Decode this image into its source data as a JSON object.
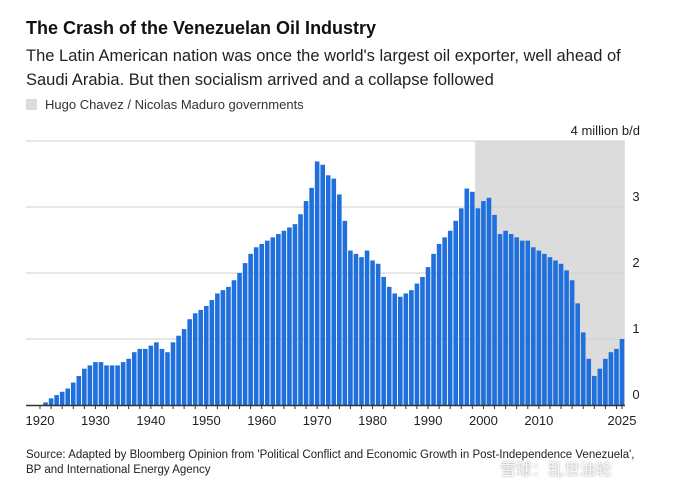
{
  "title": "The Crash of the Venezuelan Oil Industry",
  "subtitle": "The Latin American nation was once the world's largest oil exporter, well ahead of Saudi Arabia. But then socialism arrived and a collapse followed",
  "source": "Source: Adapted by Bloomberg Opinion from 'Political Conflict and Economic Growth in Post-Independence Venezuela', BP and International Energy Agency",
  "watermark": "雪球：乱世油轮",
  "chart_data": {
    "type": "bar",
    "title": "The Crash of the Venezuelan Oil Industry",
    "ylabel": "4 million b/d",
    "ylim": [
      0,
      4
    ],
    "yticks": [
      "0",
      "1",
      "2",
      "3",
      "4 million b/d"
    ],
    "xticks": [
      "1920",
      "1930",
      "1940",
      "1950",
      "1960",
      "1970",
      "1980",
      "1990",
      "2000",
      "2010",
      "2025"
    ],
    "grid": true,
    "colors": {
      "bar": "#1f6fdc",
      "highlight": "#dcdcdc"
    },
    "highlight": {
      "label": "Hugo Chavez / Nicolas Maduro governments",
      "start": 1999,
      "end": 2025
    },
    "years": [
      1921,
      1922,
      1923,
      1924,
      1925,
      1926,
      1927,
      1928,
      1929,
      1930,
      1931,
      1932,
      1933,
      1934,
      1935,
      1936,
      1937,
      1938,
      1939,
      1940,
      1941,
      1942,
      1943,
      1944,
      1945,
      1946,
      1947,
      1948,
      1949,
      1950,
      1951,
      1952,
      1953,
      1954,
      1955,
      1956,
      1957,
      1958,
      1959,
      1960,
      1961,
      1962,
      1963,
      1964,
      1965,
      1966,
      1967,
      1968,
      1969,
      1970,
      1971,
      1972,
      1973,
      1974,
      1975,
      1976,
      1977,
      1978,
      1979,
      1980,
      1981,
      1982,
      1983,
      1984,
      1985,
      1986,
      1987,
      1988,
      1989,
      1990,
      1991,
      1992,
      1993,
      1994,
      1995,
      1996,
      1997,
      1998,
      1999,
      2000,
      2001,
      2002,
      2003,
      2004,
      2005,
      2006,
      2007,
      2008,
      2009,
      2010,
      2011,
      2012,
      2013,
      2014,
      2015,
      2016,
      2017,
      2018,
      2019,
      2020,
      2021,
      2022,
      2023,
      2024,
      2025
    ],
    "values": [
      0.04,
      0.1,
      0.15,
      0.2,
      0.25,
      0.34,
      0.44,
      0.55,
      0.6,
      0.65,
      0.65,
      0.6,
      0.6,
      0.6,
      0.65,
      0.7,
      0.8,
      0.85,
      0.85,
      0.9,
      0.95,
      0.85,
      0.8,
      0.95,
      1.05,
      1.15,
      1.3,
      1.39,
      1.44,
      1.5,
      1.59,
      1.69,
      1.74,
      1.79,
      1.89,
      2.0,
      2.15,
      2.29,
      2.39,
      2.44,
      2.49,
      2.54,
      2.59,
      2.64,
      2.69,
      2.74,
      2.89,
      3.09,
      3.29,
      3.69,
      3.64,
      3.48,
      3.43,
      3.19,
      2.79,
      2.34,
      2.29,
      2.24,
      2.34,
      2.19,
      2.14,
      1.94,
      1.79,
      1.69,
      1.64,
      1.69,
      1.74,
      1.84,
      1.94,
      2.09,
      2.29,
      2.44,
      2.54,
      2.64,
      2.79,
      2.98,
      3.28,
      3.23,
      2.98,
      3.09,
      3.14,
      2.88,
      2.59,
      2.64,
      2.59,
      2.54,
      2.49,
      2.49,
      2.39,
      2.34,
      2.29,
      2.24,
      2.19,
      2.14,
      2.04,
      1.89,
      1.54,
      1.1,
      0.7,
      0.44,
      0.55,
      0.7,
      0.8,
      0.85,
      1.0
    ]
  }
}
